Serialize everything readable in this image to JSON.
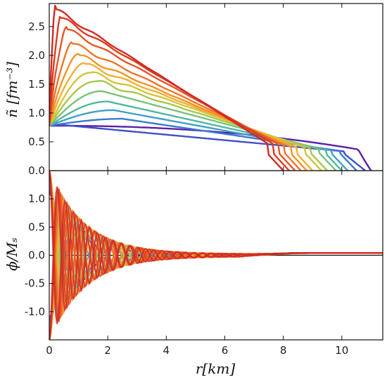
{
  "chart_data": [
    {
      "type": "line",
      "panel": "top",
      "ylabel": "ñ [fm⁻³]",
      "xlim": [
        0,
        11.4
      ],
      "ylim": [
        0,
        2.9
      ],
      "yticks": [
        "0.0",
        "0.5",
        "1.0",
        "1.5",
        "2.0",
        "2.5"
      ],
      "ytick_values": [
        0,
        0.5,
        1.0,
        1.5,
        2.0,
        2.5
      ],
      "grid": false,
      "color_scale": "rainbow: violet (largest radius) to red (smallest radius)",
      "series": [
        {
          "color": "#5b1fa8",
          "peak_r": 0.0,
          "peak_n": 0.78,
          "radius": 11.0
        },
        {
          "color": "#3f4fc4",
          "peak_r": 0.3,
          "peak_n": 0.8,
          "radius": 10.8
        },
        {
          "color": "#3a78d4",
          "peak_r": 2.5,
          "peak_n": 0.9,
          "radius": 10.5
        },
        {
          "color": "#3fa0c8",
          "peak_r": 2.2,
          "peak_n": 1.05,
          "radius": 10.2
        },
        {
          "color": "#4fb7a0",
          "peak_r": 2.0,
          "peak_n": 1.2,
          "radius": 10.0
        },
        {
          "color": "#78c27a",
          "peak_r": 1.8,
          "peak_n": 1.38,
          "radius": 9.8
        },
        {
          "color": "#a8c84c",
          "peak_r": 1.6,
          "peak_n": 1.55,
          "radius": 9.5
        },
        {
          "color": "#d2c43c",
          "peak_r": 1.4,
          "peak_n": 1.7,
          "radius": 9.3
        },
        {
          "color": "#f0b030",
          "peak_r": 1.2,
          "peak_n": 1.85,
          "radius": 9.0
        },
        {
          "color": "#f59228",
          "peak_r": 1.0,
          "peak_n": 2.0,
          "radius": 8.8
        },
        {
          "color": "#f07228",
          "peak_r": 0.8,
          "peak_n": 2.2,
          "radius": 8.6
        },
        {
          "color": "#e65426",
          "peak_r": 0.6,
          "peak_n": 2.45,
          "radius": 8.4
        },
        {
          "color": "#dc3a24",
          "peak_r": 0.4,
          "peak_n": 2.65,
          "radius": 8.2
        },
        {
          "color": "#d22a22",
          "peak_r": 0.2,
          "peak_n": 2.8,
          "radius": 8.0
        }
      ]
    },
    {
      "type": "line",
      "panel": "bottom",
      "xlabel": "r[km]",
      "ylabel": "ϕ/Mₛ",
      "xlim": [
        0,
        11.4
      ],
      "ylim": [
        -1.5,
        1.5
      ],
      "xticks": [
        "0",
        "2",
        "4",
        "6",
        "8",
        "10"
      ],
      "xtick_values": [
        0,
        2,
        4,
        6,
        8,
        10
      ],
      "yticks": [
        "-1.0",
        "-0.5",
        "0.0",
        "0.5",
        "1.0"
      ],
      "ytick_values": [
        -1.0,
        -0.5,
        0.0,
        0.5,
        1.0
      ],
      "grid": false,
      "series_description": "damped oscillations about 0, one per curve, same color scale as top panel",
      "series": [
        {
          "color": "#5b1fa8",
          "amplitude": 1.1,
          "wavelength": 2.4,
          "tail": 0.04
        },
        {
          "color": "#3f4fc4",
          "amplitude": 1.15,
          "wavelength": 2.2,
          "tail": 0.04
        },
        {
          "color": "#3a78d4",
          "amplitude": 1.2,
          "wavelength": 2.0,
          "tail": 0.04
        },
        {
          "color": "#3fa0c8",
          "amplitude": 1.25,
          "wavelength": 1.8,
          "tail": 0.04
        },
        {
          "color": "#4fb7a0",
          "amplitude": 1.3,
          "wavelength": 1.6,
          "tail": 0.04
        },
        {
          "color": "#78c27a",
          "amplitude": 1.35,
          "wavelength": 1.45,
          "tail": 0.04
        },
        {
          "color": "#a8c84c",
          "amplitude": 1.4,
          "wavelength": 1.3,
          "tail": 0.04
        },
        {
          "color": "#d2c43c",
          "amplitude": 1.45,
          "wavelength": 1.15,
          "tail": 0.04
        },
        {
          "color": "#f0b030",
          "amplitude": 1.5,
          "wavelength": 1.0,
          "tail": 0.04
        },
        {
          "color": "#f59228",
          "amplitude": 1.5,
          "wavelength": 0.9,
          "tail": 0.04
        },
        {
          "color": "#f07228",
          "amplitude": 1.5,
          "wavelength": 0.8,
          "tail": 0.04
        },
        {
          "color": "#e65426",
          "amplitude": 1.5,
          "wavelength": 0.7,
          "tail": 0.04
        },
        {
          "color": "#dc3a24",
          "amplitude": 1.5,
          "wavelength": 0.62,
          "tail": 0.04
        },
        {
          "color": "#d22a22",
          "amplitude": 1.5,
          "wavelength": 0.55,
          "tail": 0.04
        }
      ]
    }
  ]
}
